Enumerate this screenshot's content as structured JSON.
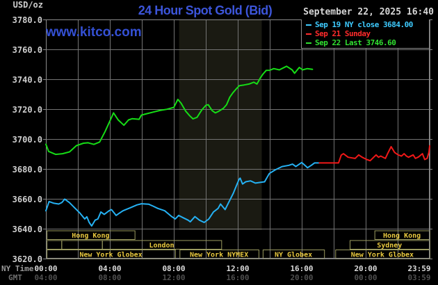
{
  "header": {
    "units_label": "USD/oz",
    "title": "24 Hour Spot Gold (Bid)",
    "datetime": "September 22, 2025 16:40",
    "watermark": "www.kitco.com"
  },
  "legend": {
    "items": [
      {
        "id": "sep19",
        "label": "Sep 19 NY close 3684.00",
        "color": "#3ecbff"
      },
      {
        "id": "sep21",
        "label": "Sep 21 Sunday",
        "color": "#ff2b2b"
      },
      {
        "id": "sep22",
        "label": "Sep 22 Last 3746.60",
        "color": "#30e030"
      }
    ]
  },
  "axes": {
    "y_tick_values": [
      3780,
      3760,
      3740,
      3720,
      3700,
      3680,
      3660,
      3640,
      3620
    ],
    "y_tick_labels": [
      "3780.0",
      "3760.0",
      "3740.0",
      "3720.0",
      "3700.0",
      "3680.0",
      "3660.0",
      "3640.0",
      "3620.0"
    ],
    "x_tick_hours": [
      0,
      4,
      8,
      12,
      16,
      20,
      24
    ],
    "ny_row_label": "NY Time",
    "ny_tick_labels": [
      "00:00",
      "04:00",
      "08:00",
      "12:00",
      "16:00",
      "20:00",
      "23:59"
    ],
    "gmt_row_label": "GMT",
    "gmt_tick_labels": [
      "04:00",
      "08:00",
      "12:00",
      "16:00",
      "20:00",
      "00:00",
      "03:59"
    ]
  },
  "sessions": {
    "rows": [
      {
        "name": "asia-row",
        "boxes": [
          {
            "label": "Hong Kong",
            "from": 0.05,
            "to": 5.55
          },
          {
            "label": "Hong Kong",
            "from": 20.55,
            "to": 23.98
          }
        ]
      },
      {
        "name": "europe-row",
        "boxes": [
          {
            "label": "",
            "from": 0.05,
            "to": 0.97
          },
          {
            "label": "",
            "from": 0.97,
            "to": 3.51
          },
          {
            "label": "London",
            "from": 3.51,
            "to": 10.97
          },
          {
            "label": "Sydney",
            "from": 19.0,
            "to": 23.98
          }
        ]
      },
      {
        "name": "america-row",
        "boxes": [
          {
            "label": "New York Globex",
            "from": 0.05,
            "to": 8.08
          },
          {
            "label": "New York NYMEX",
            "from": 8.36,
            "to": 13.3
          },
          {
            "label": "NY Globex",
            "from": 13.56,
            "to": 17.4
          },
          {
            "label": "New York Globex",
            "from": 18.1,
            "to": 23.98
          }
        ]
      }
    ]
  },
  "colors": {
    "background": "#000000",
    "grid": "#747474",
    "plot_border": "#8b8b8b",
    "nymex_band": "#1a1a12",
    "session_border": "#9c9c60",
    "session_text": "#e9c93f",
    "title_blue": "#3c55d9",
    "line_sep19": "#25b1f3",
    "line_sep21": "#f01818",
    "line_sep22": "#16dd16"
  },
  "chart_data": {
    "type": "line",
    "title": "24 Hour Spot Gold (Bid)",
    "xlabel": "NY Time (hours, 00:00-23:59)",
    "ylabel": "USD/oz",
    "xlim": [
      0,
      24
    ],
    "ylim": [
      3620,
      3780
    ],
    "y_step": 20,
    "grid": true,
    "legend_position": "top-right",
    "prev_close": 3684.0,
    "last": 3746.6,
    "highlight_band_hours": [
      8.33,
      13.5
    ],
    "series": [
      {
        "id": "sep19",
        "name": "Sep 19 NY close",
        "color": "#25b1f3",
        "points": [
          [
            0,
            3652
          ],
          [
            0.2,
            3658.2
          ],
          [
            0.5,
            3657
          ],
          [
            0.8,
            3656.5
          ],
          [
            1.0,
            3657.5
          ],
          [
            1.18,
            3659.8
          ],
          [
            1.48,
            3657.4
          ],
          [
            1.77,
            3654.3
          ],
          [
            2.13,
            3650.4
          ],
          [
            2.43,
            3646.5
          ],
          [
            2.56,
            3648
          ],
          [
            2.71,
            3644.2
          ],
          [
            2.86,
            3641.8
          ],
          [
            3.08,
            3645.7
          ],
          [
            3.25,
            3646.5
          ],
          [
            3.44,
            3651.2
          ],
          [
            3.65,
            3649.6
          ],
          [
            3.95,
            3652
          ],
          [
            4.1,
            3652.8
          ],
          [
            4.39,
            3648.9
          ],
          [
            4.6,
            3650.4
          ],
          [
            4.82,
            3652
          ],
          [
            5.26,
            3653.9
          ],
          [
            5.69,
            3655.9
          ],
          [
            5.98,
            3656.7
          ],
          [
            6.42,
            3656.4
          ],
          [
            6.7,
            3655.1
          ],
          [
            7.0,
            3653.6
          ],
          [
            7.43,
            3652
          ],
          [
            7.87,
            3648.1
          ],
          [
            8.09,
            3646.5
          ],
          [
            8.3,
            3648.9
          ],
          [
            8.59,
            3647.3
          ],
          [
            8.89,
            3645.7
          ],
          [
            9.03,
            3644.6
          ],
          [
            9.32,
            3648.1
          ],
          [
            9.6,
            3645.7
          ],
          [
            9.9,
            3644.2
          ],
          [
            10.19,
            3646.5
          ],
          [
            10.48,
            3651.2
          ],
          [
            10.77,
            3653.6
          ],
          [
            10.92,
            3656.5
          ],
          [
            11.21,
            3652.8
          ],
          [
            11.5,
            3659
          ],
          [
            11.72,
            3663.7
          ],
          [
            11.93,
            3669.2
          ],
          [
            12.08,
            3673
          ],
          [
            12.15,
            3673.8
          ],
          [
            12.3,
            3669.9
          ],
          [
            12.5,
            3671.4
          ],
          [
            12.8,
            3672
          ],
          [
            13.1,
            3670.5
          ],
          [
            13.4,
            3671
          ],
          [
            13.68,
            3671.4
          ],
          [
            13.97,
            3676.9
          ],
          [
            14.33,
            3679.3
          ],
          [
            14.77,
            3681.6
          ],
          [
            15.2,
            3682.4
          ],
          [
            15.42,
            3683.2
          ],
          [
            15.63,
            3681.6
          ],
          [
            16.0,
            3684.3
          ],
          [
            16.36,
            3680.8
          ],
          [
            16.6,
            3682.4
          ],
          [
            16.8,
            3684
          ],
          [
            17.1,
            3684
          ]
        ]
      },
      {
        "id": "sep21",
        "name": "Sep 21 Sunday",
        "color": "#f01818",
        "points": [
          [
            17.1,
            3684
          ],
          [
            18.3,
            3684
          ],
          [
            18.47,
            3689.2
          ],
          [
            18.61,
            3690.2
          ],
          [
            18.9,
            3687.8
          ],
          [
            19.34,
            3687
          ],
          [
            19.56,
            3689.4
          ],
          [
            19.78,
            3687.8
          ],
          [
            20.07,
            3686.3
          ],
          [
            20.28,
            3685.5
          ],
          [
            20.5,
            3687.8
          ],
          [
            20.65,
            3689.4
          ],
          [
            20.8,
            3687.8
          ],
          [
            20.94,
            3688.6
          ],
          [
            21.23,
            3687
          ],
          [
            21.37,
            3690.2
          ],
          [
            21.59,
            3694.9
          ],
          [
            21.81,
            3691
          ],
          [
            22.03,
            3689.4
          ],
          [
            22.24,
            3688.6
          ],
          [
            22.4,
            3690.2
          ],
          [
            22.55,
            3688.6
          ],
          [
            22.68,
            3687.8
          ],
          [
            22.97,
            3689.4
          ],
          [
            23.11,
            3687
          ],
          [
            23.3,
            3688
          ],
          [
            23.55,
            3690.2
          ],
          [
            23.69,
            3686.3
          ],
          [
            23.84,
            3687
          ],
          [
            23.95,
            3691
          ],
          [
            24,
            3695.5
          ]
        ]
      },
      {
        "id": "sep22",
        "name": "Sep 22 Last",
        "color": "#16dd16",
        "points": [
          [
            0,
            3696.5
          ],
          [
            0.17,
            3691.7
          ],
          [
            0.61,
            3689.7
          ],
          [
            1.04,
            3690.2
          ],
          [
            1.48,
            3691.4
          ],
          [
            1.91,
            3695.6
          ],
          [
            2.35,
            3697.2
          ],
          [
            2.64,
            3697.5
          ],
          [
            3.0,
            3696.4
          ],
          [
            3.36,
            3698
          ],
          [
            3.7,
            3705
          ],
          [
            4.0,
            3712
          ],
          [
            4.23,
            3717.5
          ],
          [
            4.52,
            3712.8
          ],
          [
            4.88,
            3709.2
          ],
          [
            5.17,
            3712.8
          ],
          [
            5.39,
            3713.6
          ],
          [
            5.83,
            3713.2
          ],
          [
            5.97,
            3716
          ],
          [
            6.26,
            3716.8
          ],
          [
            6.7,
            3718
          ],
          [
            7.13,
            3719.1
          ],
          [
            7.57,
            3719.9
          ],
          [
            8.0,
            3721.2
          ],
          [
            8.25,
            3726.5
          ],
          [
            8.45,
            3724
          ],
          [
            8.75,
            3718.5
          ],
          [
            9.0,
            3715.5
          ],
          [
            9.2,
            3713.5
          ],
          [
            9.45,
            3714.5
          ],
          [
            9.75,
            3719.5
          ],
          [
            10.0,
            3722.5
          ],
          [
            10.15,
            3723
          ],
          [
            10.4,
            3719
          ],
          [
            10.6,
            3717.5
          ],
          [
            10.8,
            3718.5
          ],
          [
            11.1,
            3720.5
          ],
          [
            11.3,
            3723
          ],
          [
            11.5,
            3728
          ],
          [
            11.7,
            3731
          ],
          [
            11.9,
            3733.5
          ],
          [
            12.1,
            3735.7
          ],
          [
            12.4,
            3736.2
          ],
          [
            12.7,
            3736.8
          ],
          [
            13.0,
            3738
          ],
          [
            13.2,
            3736.8
          ],
          [
            13.43,
            3741.2
          ],
          [
            13.58,
            3743.5
          ],
          [
            13.78,
            3745.9
          ],
          [
            14.0,
            3746
          ],
          [
            14.25,
            3747.1
          ],
          [
            14.6,
            3746.3
          ],
          [
            15.05,
            3748.7
          ],
          [
            15.4,
            3746.3
          ],
          [
            15.55,
            3744
          ],
          [
            15.85,
            3747.9
          ],
          [
            16.05,
            3746.3
          ],
          [
            16.35,
            3747.1
          ],
          [
            16.67,
            3746.6
          ]
        ]
      }
    ]
  }
}
